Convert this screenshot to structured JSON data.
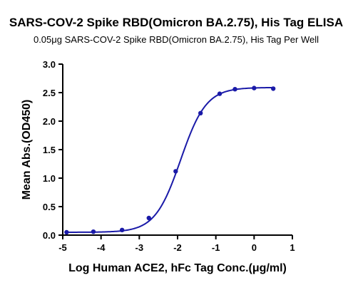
{
  "chart_data": {
    "type": "scatter",
    "title": "SARS-COV-2 Spike RBD(Omicron BA.2.75), His Tag ELISA",
    "subtitle": "0.05μg SARS-COV-2 Spike RBD(Omicron BA.2.75), His Tag Per Well",
    "xlabel": "Log Human ACE2, hFc Tag Conc.(μg/ml)",
    "ylabel": "Mean Abs.(OD450)",
    "xlim": [
      -5,
      1
    ],
    "ylim": [
      0,
      3.0
    ],
    "xticks": [
      -5,
      -4,
      -3,
      -2,
      -1,
      0,
      1
    ],
    "yticks": [
      0.0,
      0.5,
      1.0,
      1.5,
      2.0,
      2.5,
      3.0
    ],
    "xtick_labels": [
      "-5",
      "-4",
      "-3",
      "-2",
      "-1",
      "0",
      "1"
    ],
    "ytick_labels": [
      "0.0",
      "0.5",
      "1.0",
      "1.5",
      "2.0",
      "2.5",
      "3.0"
    ],
    "grid": false,
    "legend": "none",
    "series": [
      {
        "x": [
          -4.9,
          -4.2,
          -3.45,
          -2.75,
          -2.05,
          -1.4,
          -0.9,
          -0.5,
          0.0,
          0.5
        ],
        "y": [
          0.05,
          0.06,
          0.09,
          0.3,
          1.12,
          2.14,
          2.48,
          2.56,
          2.58,
          2.57
        ],
        "fit_curve": "4PL",
        "color": "#1a1aa8"
      }
    ],
    "fit": {
      "bottom": 0.05,
      "top": 2.59,
      "logEC50": -1.92,
      "hill": 1.3
    }
  }
}
